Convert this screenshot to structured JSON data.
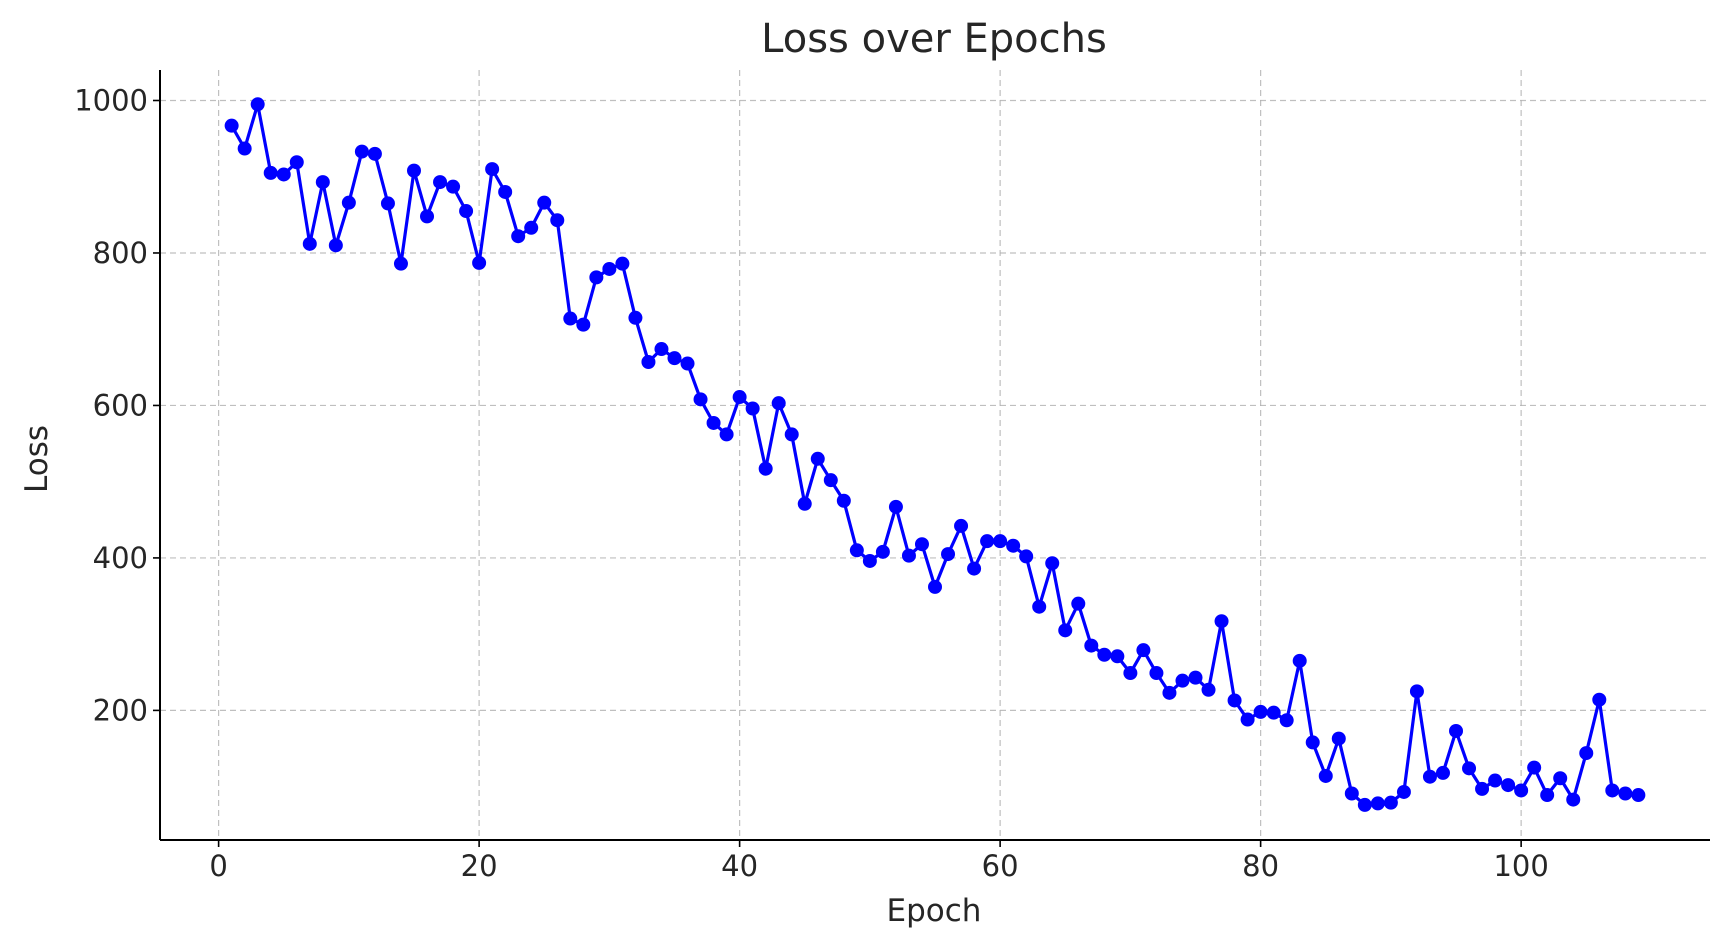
{
  "chart_data": {
    "type": "line",
    "title": "Loss over Epochs",
    "xlabel": "Epoch",
    "ylabel": "Loss",
    "xlim": [
      -4.5,
      114.5
    ],
    "ylim": [
      30,
      1040
    ],
    "x_ticks": [
      0,
      20,
      40,
      60,
      80,
      100
    ],
    "y_ticks": [
      200,
      400,
      600,
      800,
      1000
    ],
    "grid": true,
    "line_color": "#0000ff",
    "marker": "circle",
    "x": [
      1,
      2,
      3,
      4,
      5,
      6,
      7,
      8,
      9,
      10,
      11,
      12,
      13,
      14,
      15,
      16,
      17,
      18,
      19,
      20,
      21,
      22,
      23,
      24,
      25,
      26,
      27,
      28,
      29,
      30,
      31,
      32,
      33,
      34,
      35,
      36,
      37,
      38,
      39,
      40,
      41,
      42,
      43,
      44,
      45,
      46,
      47,
      48,
      49,
      50,
      51,
      52,
      53,
      54,
      55,
      56,
      57,
      58,
      59,
      60,
      61,
      62,
      63,
      64,
      65,
      66,
      67,
      68,
      69,
      70,
      71,
      72,
      73,
      74,
      75,
      76,
      77,
      78,
      79,
      80,
      81,
      82,
      83,
      84,
      85,
      86,
      87,
      88,
      89,
      90,
      91,
      92,
      93,
      94,
      95,
      96,
      97,
      98,
      99,
      100,
      101,
      102,
      103,
      104,
      105,
      106,
      107,
      108,
      109
    ],
    "values": [
      967,
      937,
      995,
      905,
      903,
      919,
      812,
      893,
      810,
      866,
      933,
      930,
      865,
      786,
      908,
      848,
      893,
      887,
      855,
      787,
      910,
      880,
      822,
      833,
      866,
      843,
      714,
      706,
      768,
      779,
      786,
      715,
      657,
      674,
      662,
      655,
      608,
      577,
      562,
      611,
      596,
      517,
      603,
      562,
      471,
      530,
      502,
      475,
      410,
      396,
      408,
      467,
      403,
      418,
      362,
      405,
      442,
      386,
      422,
      422,
      416,
      402,
      336,
      393,
      305,
      340,
      285,
      273,
      271,
      249,
      279,
      249,
      223,
      239,
      243,
      227,
      317,
      213,
      188,
      198,
      197,
      187,
      265,
      158,
      114,
      163,
      91,
      76,
      78,
      79,
      93,
      225,
      113,
      118,
      173,
      124,
      97,
      108,
      102,
      95,
      125,
      89,
      111,
      83,
      144,
      214,
      95,
      91,
      89
    ]
  }
}
